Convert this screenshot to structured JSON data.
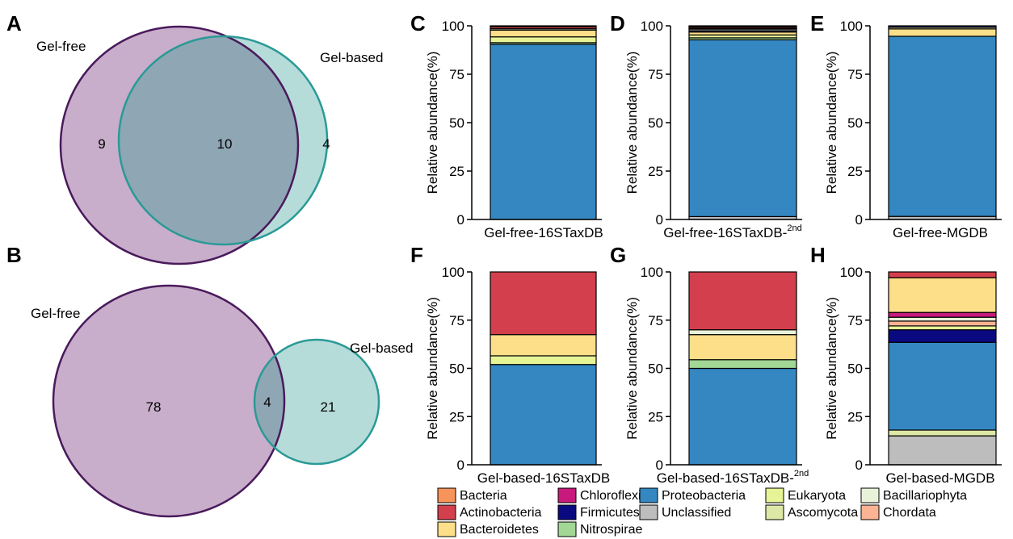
{
  "panels": {
    "A": "A",
    "B": "B",
    "C": "C",
    "D": "D",
    "E": "E",
    "F": "F",
    "G": "G",
    "H": "H"
  },
  "venn": [
    {
      "panel": "A",
      "left_label": "Gel-free",
      "right_label": "Gel-based",
      "left_only": "9",
      "overlap": "10",
      "right_only": "4"
    },
    {
      "panel": "B",
      "left_label": "Gel-free",
      "right_label": "Gel-based",
      "left_only": "78",
      "overlap": "4",
      "right_only": "21"
    }
  ],
  "colors": {
    "Bacteria": "#f7945a",
    "Actinobacteria": "#d33f4c",
    "Bacteroidetes": "#fddf8a",
    "Chloroflexi": "#c8197c",
    "Firmicutes": "#0a0a80",
    "Nitrospirae": "#a2d796",
    "Proteobacteria": "#3487c0",
    "Unclassified": "#bdbdbd",
    "Eukaryota": "#e6f495",
    "Ascomycota": "#dde8a6",
    "Bacillariophyta": "#e8f2d9",
    "Chordata": "#fbb394",
    "venn_left_fill": "#c8aecb",
    "venn_left_stroke": "#4a1a5c",
    "venn_right_fill": "#b6dcda",
    "venn_right_stroke": "#2a9a96",
    "venn_overlap_fill": "#8fa6b4"
  },
  "legend": [
    "Bacteria",
    "Actinobacteria",
    "Bacteroidetes",
    "Chloroflexi",
    "Firmicutes",
    "Nitrospirae",
    "Proteobacteria",
    "Unclassified",
    "Eukaryota",
    "Ascomycota",
    "Bacillariophyta",
    "Chordata"
  ],
  "chart_data": [
    {
      "panel": "C",
      "type": "bar",
      "stacked": true,
      "categories": [
        "Gel-free-16STaxDB"
      ],
      "ylabel": "Relative abundance(%)",
      "ylim": [
        0,
        100
      ],
      "yticks": [
        "0",
        "25",
        "50",
        "75",
        "100"
      ],
      "segments": [
        {
          "name": "Proteobacteria",
          "value": 90.5
        },
        {
          "name": "Nitrospirae",
          "value": 0.8
        },
        {
          "name": "Eukaryota",
          "value": 3.0
        },
        {
          "name": "Bacteroidetes",
          "value": 3.5
        },
        {
          "name": "Bacillariophyta",
          "value": 0.7
        },
        {
          "name": "Actinobacteria",
          "value": 1.0
        },
        {
          "name": "Bacteria",
          "value": 0.5
        }
      ]
    },
    {
      "panel": "D",
      "type": "bar",
      "stacked": true,
      "categories": [
        "Gel-free-16STaxDB-2nd"
      ],
      "xlabel_main": "Gel-free-16STaxDB-",
      "xlabel_sup": "2nd",
      "ylabel": "Relative abundance(%)",
      "ylim": [
        0,
        100
      ],
      "yticks": [
        "0",
        "25",
        "50",
        "75",
        "100"
      ],
      "segments": [
        {
          "name": "Unclassified",
          "value": 1.5
        },
        {
          "name": "Proteobacteria",
          "value": 91.3
        },
        {
          "name": "Nitrospirae",
          "value": 1.0
        },
        {
          "name": "Eukaryota",
          "value": 1.5
        },
        {
          "name": "Bacteroidetes",
          "value": 1.5
        },
        {
          "name": "Firmicutes",
          "value": 0.7
        },
        {
          "name": "Bacillariophyta",
          "value": 0.8
        },
        {
          "name": "Chordata",
          "value": 0.5
        },
        {
          "name": "Actinobacteria",
          "value": 0.7
        },
        {
          "name": "Chloroflexi",
          "value": 0.5
        }
      ]
    },
    {
      "panel": "E",
      "type": "bar",
      "stacked": true,
      "categories": [
        "Gel-free-MGDB"
      ],
      "ylabel": "Relative abundance(%)",
      "ylim": [
        0,
        100
      ],
      "yticks": [
        "0",
        "25",
        "50",
        "75",
        "100"
      ],
      "segments": [
        {
          "name": "Unclassified",
          "value": 1.6
        },
        {
          "name": "Proteobacteria",
          "value": 93.0
        },
        {
          "name": "Bacteroidetes",
          "value": 3.8
        },
        {
          "name": "Eukaryota",
          "value": 0.8
        },
        {
          "name": "Firmicutes",
          "value": 0.8
        }
      ]
    },
    {
      "panel": "F",
      "type": "bar",
      "stacked": true,
      "categories": [
        "Gel-based-16STaxDB"
      ],
      "ylabel": "Relative abundance(%)",
      "ylim": [
        0,
        100
      ],
      "yticks": [
        "0",
        "25",
        "50",
        "75",
        "100"
      ],
      "segments": [
        {
          "name": "Proteobacteria",
          "value": 52.0
        },
        {
          "name": "Eukaryota",
          "value": 4.5
        },
        {
          "name": "Bacteroidetes",
          "value": 11.0
        },
        {
          "name": "Actinobacteria",
          "value": 32.5
        }
      ]
    },
    {
      "panel": "G",
      "type": "bar",
      "stacked": true,
      "categories": [
        "Gel-based-16STaxDB-2nd"
      ],
      "xlabel_main": "Gel-based-16STaxDB-",
      "xlabel_sup": "2nd",
      "ylabel": "Relative abundance(%)",
      "ylim": [
        0,
        100
      ],
      "yticks": [
        "0",
        "25",
        "50",
        "75",
        "100"
      ],
      "segments": [
        {
          "name": "Proteobacteria",
          "value": 50.0
        },
        {
          "name": "Nitrospirae",
          "value": 4.5
        },
        {
          "name": "Bacteroidetes",
          "value": 13.0
        },
        {
          "name": "Bacillariophyta",
          "value": 2.5
        },
        {
          "name": "Actinobacteria",
          "value": 30.0
        }
      ]
    },
    {
      "panel": "H",
      "type": "bar",
      "stacked": true,
      "categories": [
        "Gel-based-MGDB"
      ],
      "ylabel": "Relative abundance(%)",
      "ylim": [
        0,
        100
      ],
      "yticks": [
        "0",
        "25",
        "50",
        "75",
        "100"
      ],
      "segments": [
        {
          "name": "Unclassified",
          "value": 15.0
        },
        {
          "name": "Ascomycota",
          "value": 3.0
        },
        {
          "name": "Proteobacteria",
          "value": 45.5
        },
        {
          "name": "Firmicutes",
          "value": 6.5
        },
        {
          "name": "Eukaryota",
          "value": 2.0
        },
        {
          "name": "Chordata",
          "value": 2.5
        },
        {
          "name": "Bacillariophyta",
          "value": 2.0
        },
        {
          "name": "Chloroflexi",
          "value": 2.5
        },
        {
          "name": "Bacteroidetes",
          "value": 18.0
        },
        {
          "name": "Actinobacteria",
          "value": 3.0
        }
      ]
    }
  ]
}
